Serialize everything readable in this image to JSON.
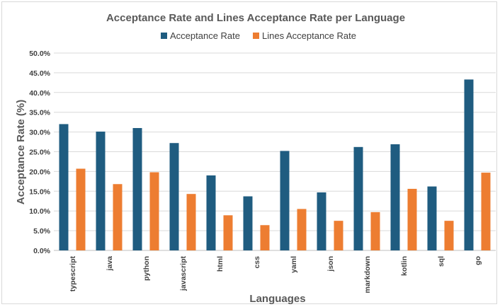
{
  "chart_data": {
    "type": "bar",
    "title": "Acceptance Rate and Lines Acceptance Rate per Language",
    "xlabel": "Languages",
    "ylabel": "Acceptance Rate (%)",
    "ylim": [
      0,
      50
    ],
    "yticks": [
      "0.0%",
      "5.0%",
      "10.0%",
      "15.0%",
      "20.0%",
      "25.0%",
      "30.0%",
      "35.0%",
      "40.0%",
      "45.0%",
      "50.0%"
    ],
    "grid": true,
    "legend_position": "top",
    "categories": [
      "typescript",
      "java",
      "python",
      "javascript",
      "html",
      "css",
      "yaml",
      "json",
      "markdown",
      "kotlin",
      "sql",
      "go"
    ],
    "series": [
      {
        "name": "Acceptance Rate",
        "color": "#1f5c80",
        "values": [
          32.0,
          30.1,
          31.0,
          27.2,
          19.0,
          13.7,
          25.2,
          14.7,
          26.2,
          26.9,
          16.2,
          43.3
        ]
      },
      {
        "name": "Lines Acceptance Rate",
        "color": "#ed7d31",
        "values": [
          20.7,
          16.8,
          19.8,
          14.3,
          8.9,
          6.4,
          10.5,
          7.5,
          9.7,
          15.6,
          7.5,
          19.7
        ]
      }
    ]
  }
}
